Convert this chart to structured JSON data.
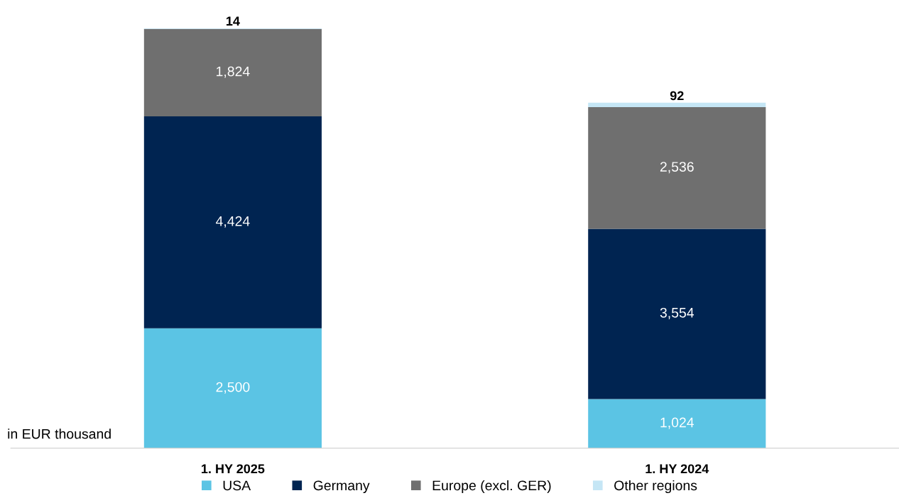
{
  "chart_data": {
    "type": "bar",
    "stacked": true,
    "tick_labels": "x",
    "categories": [
      "1. HY 2025",
      "1. HY 2024"
    ],
    "series": [
      {
        "name": "USA",
        "color": "#5bc4e4",
        "values": [
          2500,
          1024
        ],
        "value_labels": [
          "2,500",
          "1,024"
        ]
      },
      {
        "name": "Germany",
        "color": "#002451",
        "values": [
          4424,
          3554
        ],
        "value_labels": [
          "4,424",
          "3,554"
        ]
      },
      {
        "name": "Europe (excl. GER)",
        "color": "#6f6f6f",
        "values": [
          1824,
          2536
        ],
        "value_labels": [
          "1,824",
          "2,536"
        ]
      },
      {
        "name": "Other regions",
        "color": "#c5e6f5",
        "values": [
          14,
          92
        ],
        "value_labels": [
          "14",
          "92"
        ]
      }
    ],
    "annotations": [
      "in EUR thousand"
    ],
    "legend": "bottom",
    "grid": false
  }
}
